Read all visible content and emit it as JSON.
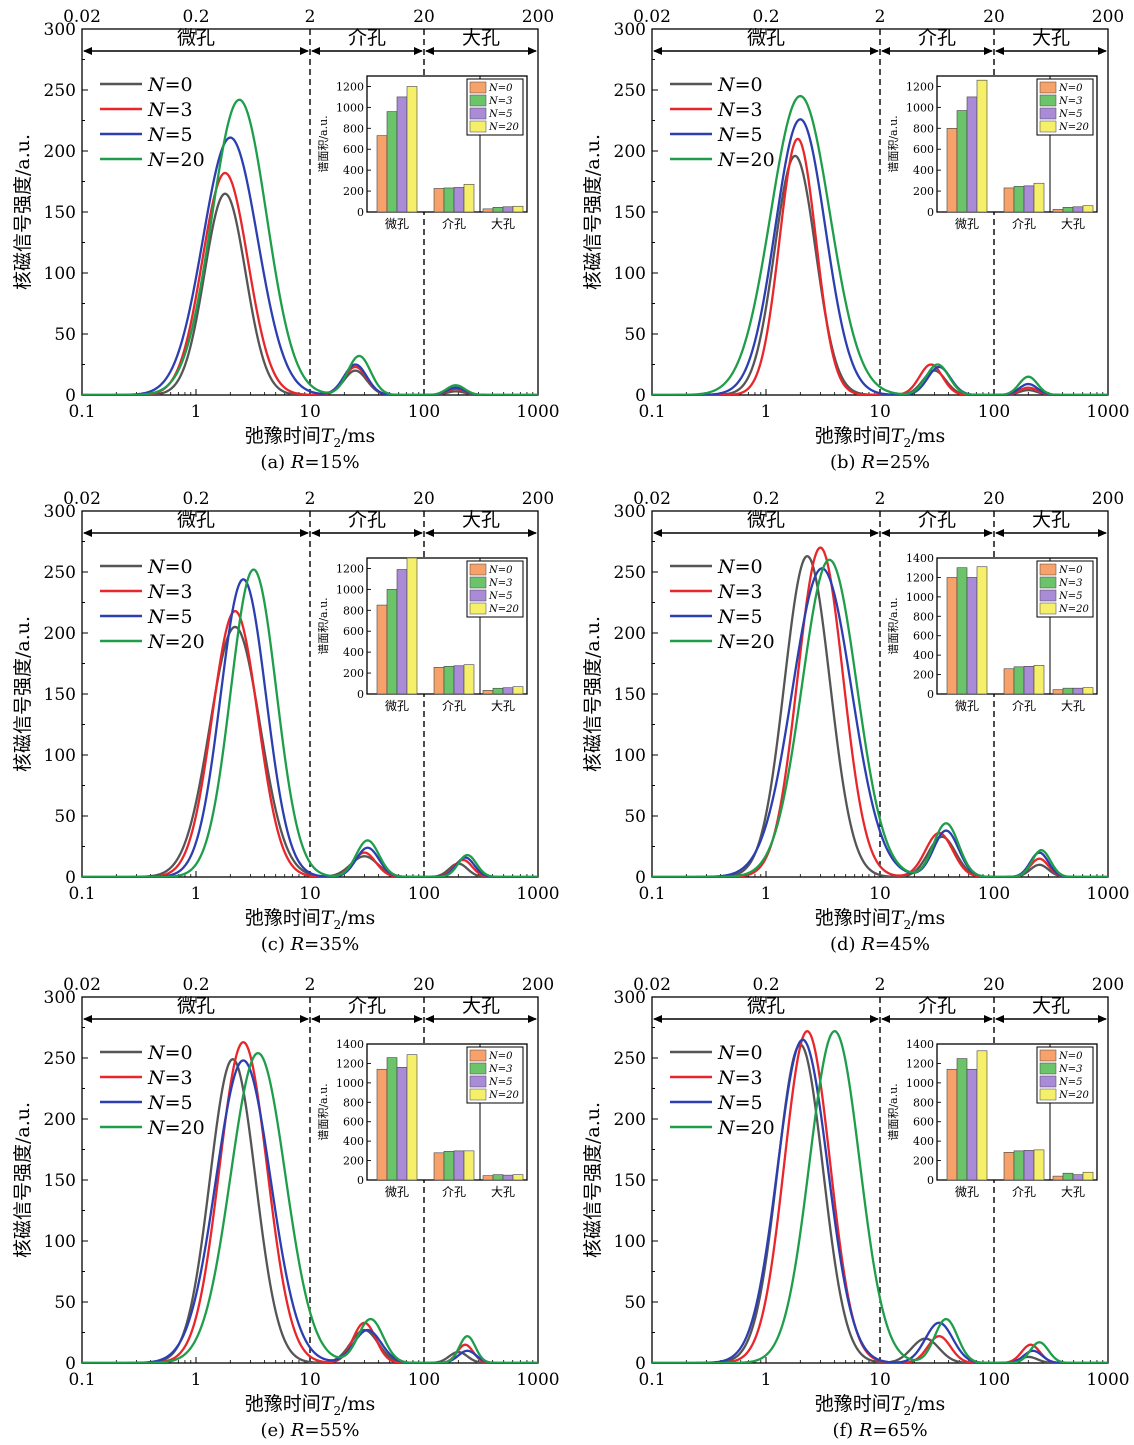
{
  "shared": {
    "xlabel_main": "弛豫时间",
    "xlabel_sym": "T",
    "xlabel_sub": "2",
    "xlabel_unit": "/ms",
    "ylabel": "核磁信号强度/a.u.",
    "inset_ylabel": "谱面积/a.u.",
    "xticks": [
      "0.1",
      "1",
      "10",
      "100",
      "1000"
    ],
    "yticks": [
      "0",
      "50",
      "100",
      "150",
      "200",
      "250",
      "300"
    ],
    "top_ticks": [
      "0.02",
      "0.2",
      "2",
      "20",
      "200"
    ],
    "regions": [
      "微孔",
      "介孔",
      "大孔"
    ],
    "legend_prefix": "N",
    "legend_values": [
      "0",
      "3",
      "5",
      "20"
    ],
    "inset_legend": [
      "N=0",
      "N=3",
      "N=5",
      "N=20"
    ],
    "inset_categories": [
      "微孔",
      "介孔",
      "大孔"
    ],
    "colors": {
      "lines": [
        "#555555",
        "#e8262b",
        "#2b3fb0",
        "#1e9e4a"
      ],
      "bars": [
        "#f6a26a",
        "#6cc46a",
        "#a98bd8",
        "#f5ef6a"
      ]
    }
  },
  "chart_data": [
    {
      "type": "line",
      "caption_prefix": "(a) ",
      "caption_var": "R",
      "caption_value": "=15%",
      "xscale": "log",
      "xlim": [
        0.1,
        1000
      ],
      "ylim": [
        0,
        300
      ],
      "series": [
        {
          "name": "N=0",
          "peaks": [
            [
              1.8,
              165,
              0.18
            ],
            [
              25,
              20,
              0.1
            ],
            [
              190,
              3,
              0.08
            ]
          ]
        },
        {
          "name": "N=3",
          "peaks": [
            [
              1.8,
              182,
              0.2
            ],
            [
              25,
              23,
              0.1
            ],
            [
              190,
              5,
              0.08
            ]
          ]
        },
        {
          "name": "N=5",
          "peaks": [
            [
              2.0,
              211,
              0.24
            ],
            [
              25,
              25,
              0.1
            ],
            [
              190,
              6,
              0.08
            ]
          ]
        },
        {
          "name": "N=20",
          "peaks": [
            [
              2.4,
              242,
              0.24
            ],
            [
              27,
              32,
              0.1
            ],
            [
              190,
              8,
              0.08
            ]
          ]
        }
      ],
      "inset": {
        "ylim": [
          0,
          1300
        ],
        "yticks": [
          0,
          200,
          400,
          600,
          800,
          1000,
          1200
        ],
        "values": [
          [
            730,
            960,
            1100,
            1200
          ],
          [
            225,
            230,
            235,
            265
          ],
          [
            30,
            45,
            50,
            55
          ]
        ]
      }
    },
    {
      "type": "line",
      "caption_prefix": "(b) ",
      "caption_var": "R",
      "caption_value": "=25%",
      "xscale": "log",
      "xlim": [
        0.1,
        1000
      ],
      "ylim": [
        0,
        300
      ],
      "series": [
        {
          "name": "N=0",
          "peaks": [
            [
              1.8,
              196,
              0.18
            ],
            [
              30,
              20,
              0.1
            ],
            [
              200,
              4,
              0.08
            ]
          ]
        },
        {
          "name": "N=3",
          "peaks": [
            [
              1.9,
              210,
              0.16
            ],
            [
              28,
              25,
              0.1
            ],
            [
              200,
              6,
              0.08
            ]
          ]
        },
        {
          "name": "N=5",
          "peaks": [
            [
              2.0,
              226,
              0.22
            ],
            [
              33,
              23,
              0.1
            ],
            [
              200,
              9,
              0.08
            ]
          ]
        },
        {
          "name": "N=20",
          "peaks": [
            [
              2.0,
              245,
              0.26
            ],
            [
              32,
              25,
              0.1
            ],
            [
              200,
              15,
              0.08
            ]
          ]
        }
      ],
      "inset": {
        "ylim": [
          0,
          1300
        ],
        "yticks": [
          0,
          200,
          400,
          600,
          800,
          1000,
          1200
        ],
        "values": [
          [
            800,
            970,
            1100,
            1260
          ],
          [
            230,
            245,
            250,
            275
          ],
          [
            25,
            45,
            50,
            60
          ]
        ]
      }
    },
    {
      "type": "line",
      "caption_prefix": "(c) ",
      "caption_var": "R",
      "caption_value": "=35%",
      "xscale": "log",
      "xlim": [
        0.1,
        1000
      ],
      "ylim": [
        0,
        300
      ],
      "series": [
        {
          "name": "N=0",
          "peaks": [
            [
              2.2,
              205,
              0.22
            ],
            [
              30,
              17,
              0.12
            ],
            [
              200,
              11,
              0.08
            ]
          ]
        },
        {
          "name": "N=3",
          "peaks": [
            [
              2.2,
              218,
              0.2
            ],
            [
              30,
              20,
              0.1
            ],
            [
              220,
              14,
              0.08
            ]
          ]
        },
        {
          "name": "N=5",
          "peaks": [
            [
              2.6,
              244,
              0.2
            ],
            [
              32,
              24,
              0.1
            ],
            [
              230,
              16,
              0.08
            ]
          ]
        },
        {
          "name": "N=20",
          "peaks": [
            [
              3.2,
              252,
              0.2
            ],
            [
              32,
              30,
              0.1
            ],
            [
              240,
              18,
              0.08
            ]
          ]
        }
      ],
      "inset": {
        "ylim": [
          0,
          1300
        ],
        "yticks": [
          0,
          200,
          400,
          600,
          800,
          1000,
          1200
        ],
        "values": [
          [
            850,
            1000,
            1190,
            1300
          ],
          [
            255,
            265,
            270,
            280
          ],
          [
            35,
            55,
            60,
            70
          ]
        ]
      }
    },
    {
      "type": "line",
      "caption_prefix": "(d) ",
      "caption_var": "R",
      "caption_value": "=45%",
      "xscale": "log",
      "xlim": [
        0.1,
        1000
      ],
      "ylim": [
        0,
        300
      ],
      "series": [
        {
          "name": "N=0",
          "peaks": [
            [
              2.3,
              263,
              0.2
            ],
            [
              35,
              33,
              0.12
            ],
            [
              250,
              10,
              0.08
            ]
          ]
        },
        {
          "name": "N=3",
          "peaks": [
            [
              3.0,
              270,
              0.2
            ],
            [
              33,
              36,
              0.12
            ],
            [
              250,
              15,
              0.08
            ]
          ]
        },
        {
          "name": "N=5",
          "peaks": [
            [
              3.1,
              253,
              0.26
            ],
            [
              38,
              38,
              0.11
            ],
            [
              250,
              20,
              0.08
            ]
          ]
        },
        {
          "name": "N=20",
          "peaks": [
            [
              3.6,
              260,
              0.24
            ],
            [
              38,
              44,
              0.11
            ],
            [
              260,
              22,
              0.08
            ]
          ]
        }
      ],
      "inset": {
        "ylim": [
          0,
          1400
        ],
        "yticks": [
          0,
          200,
          400,
          600,
          800,
          1000,
          1200,
          1400
        ],
        "values": [
          [
            1200,
            1300,
            1200,
            1310
          ],
          [
            260,
            280,
            285,
            295
          ],
          [
            45,
            60,
            60,
            65
          ]
        ]
      }
    },
    {
      "type": "line",
      "caption_prefix": "(e) ",
      "caption_var": "R",
      "caption_value": "=55%",
      "xscale": "log",
      "xlim": [
        0.1,
        1000
      ],
      "ylim": [
        0,
        300
      ],
      "series": [
        {
          "name": "N=0",
          "peaks": [
            [
              2.1,
              249,
              0.2
            ],
            [
              30,
              27,
              0.12
            ],
            [
              200,
              9,
              0.08
            ]
          ]
        },
        {
          "name": "N=3",
          "peaks": [
            [
              2.6,
              263,
              0.21
            ],
            [
              30,
              33,
              0.1
            ],
            [
              230,
              15,
              0.07
            ]
          ]
        },
        {
          "name": "N=5",
          "peaks": [
            [
              2.6,
              248,
              0.24
            ],
            [
              32,
              27,
              0.12
            ],
            [
              240,
              10,
              0.08
            ]
          ]
        },
        {
          "name": "N=20",
          "peaks": [
            [
              3.5,
              254,
              0.24
            ],
            [
              34,
              36,
              0.11
            ],
            [
              240,
              22,
              0.07
            ]
          ]
        }
      ],
      "inset": {
        "ylim": [
          0,
          1400
        ],
        "yticks": [
          0,
          200,
          400,
          600,
          800,
          1000,
          1200,
          1400
        ],
        "values": [
          [
            1140,
            1260,
            1160,
            1290
          ],
          [
            280,
            295,
            300,
            300
          ],
          [
            45,
            55,
            50,
            55
          ]
        ]
      }
    },
    {
      "type": "line",
      "caption_prefix": "(f) ",
      "caption_var": "R",
      "caption_value": "=65%",
      "xscale": "log",
      "xlim": [
        0.1,
        1000
      ],
      "ylim": [
        0,
        300
      ],
      "series": [
        {
          "name": "N=0",
          "peaks": [
            [
              2.0,
              261,
              0.2
            ],
            [
              25,
              20,
              0.12
            ],
            [
              200,
              5,
              0.08
            ]
          ]
        },
        {
          "name": "N=3",
          "peaks": [
            [
              2.3,
              272,
              0.2
            ],
            [
              33,
              22,
              0.1
            ],
            [
              210,
              15,
              0.08
            ]
          ]
        },
        {
          "name": "N=5",
          "peaks": [
            [
              2.1,
              265,
              0.22
            ],
            [
              33,
              33,
              0.12
            ],
            [
              220,
              10,
              0.08
            ]
          ]
        },
        {
          "name": "N=20",
          "peaks": [
            [
              4.0,
              272,
              0.22
            ],
            [
              38,
              36,
              0.1
            ],
            [
              250,
              17,
              0.08
            ]
          ]
        }
      ],
      "inset": {
        "ylim": [
          0,
          1400
        ],
        "yticks": [
          0,
          200,
          400,
          600,
          800,
          1000,
          1200,
          1400
        ],
        "values": [
          [
            1140,
            1250,
            1140,
            1330
          ],
          [
            285,
            300,
            305,
            310
          ],
          [
            40,
            70,
            55,
            80
          ]
        ]
      }
    }
  ]
}
